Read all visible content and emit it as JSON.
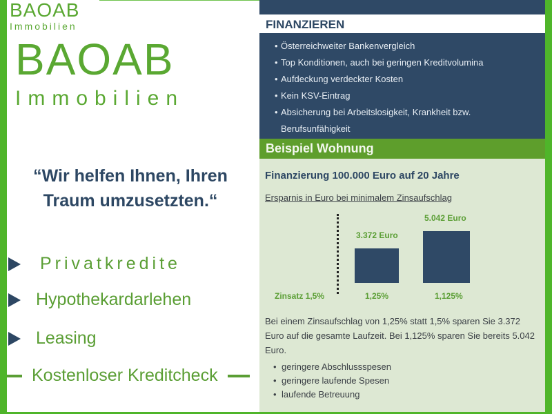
{
  "logo": {
    "text": "BAOAB",
    "sub": "Immobilien",
    "icon": "house-icon"
  },
  "quote": "“Wir helfen Ihnen, Ihren Traum umzusetzten.“",
  "services": [
    "Privatkredite",
    "Hypothekardarlehen",
    "Leasing"
  ],
  "check": "Kostenloser Kreditcheck",
  "finanzieren": {
    "title": "FINANZIEREN",
    "items": [
      "Österreichweiter Bankenvergleich",
      "Top Konditionen, auch bei geringen Kreditvolumina",
      "Aufdeckung verdeckter Kosten",
      "Kein KSV-Eintrag",
      "Absicherung bei Arbeitslosigkeit, Krankheit bzw. Berufsunfähigkeit"
    ]
  },
  "beispiel": {
    "title": "Beispiel Wohnung",
    "heading": "Finanzierung 100.000 Euro auf 20 Jahre",
    "subheading": "Ersparnis in Euro bei minimalem Zinsaufschlag"
  },
  "chart_data": {
    "type": "bar",
    "categories": [
      "1,25%",
      "1,125%"
    ],
    "values": [
      3372,
      5042
    ],
    "value_labels": [
      "3.372 Euro",
      "5.042 Euro"
    ],
    "reference_label": "Zinsatz 1,5%",
    "colors": {
      "bar": "#2f4966",
      "label": "#5a9e34"
    }
  },
  "description": "Bei einem Zinsaufschlag von 1,25% statt 1,5% sparen Sie 3.372 Euro auf die gesamte Laufzeit. Bei 1,125% sparen Sie bereits 5.042 Euro.",
  "benefits": [
    "geringere Abschlussspesen",
    "geringere laufende Spesen",
    "laufende Betreuung"
  ],
  "colors": {
    "green": "#4fb52a",
    "navy": "#2f4966",
    "panel": "#dde8d3"
  }
}
